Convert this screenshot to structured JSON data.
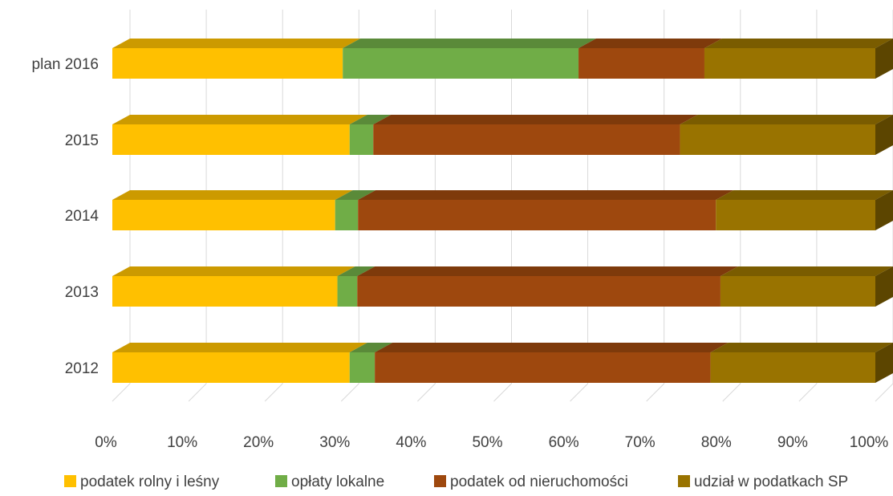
{
  "chart_data": {
    "type": "bar",
    "orientation": "horizontal",
    "stacked": "100%",
    "style": "3d",
    "categories": [
      "plan 2016",
      "2015",
      "2014",
      "2013",
      "2012"
    ],
    "series": [
      {
        "name": "podatek rolny i leśny",
        "color": "#ffc000",
        "values": [
          30.2,
          31.1,
          29.2,
          29.5,
          31.1
        ]
      },
      {
        "name": "opłaty lokalne",
        "color": "#70ad47",
        "values": [
          30.9,
          3.1,
          3.0,
          2.6,
          3.3
        ]
      },
      {
        "name": "podatek od nieruchomości",
        "color": "#9e480e",
        "values": [
          16.5,
          40.2,
          46.9,
          47.6,
          44.0
        ]
      },
      {
        "name": "udział w podatkach SP",
        "color": "#997300",
        "values": [
          22.4,
          25.6,
          20.9,
          20.3,
          21.6
        ]
      }
    ],
    "xaxis_ticks": [
      "0%",
      "10%",
      "20%",
      "30%",
      "40%",
      "50%",
      "60%",
      "70%",
      "80%",
      "90%",
      "100%"
    ],
    "xlim": [
      0,
      100
    ],
    "grid": true,
    "legend_position": "bottom"
  }
}
